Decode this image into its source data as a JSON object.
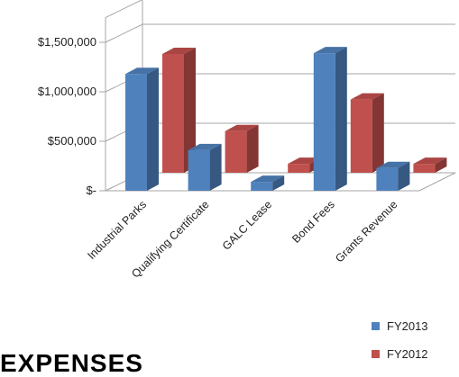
{
  "chart_data": {
    "type": "bar",
    "style": "3d-clustered-column",
    "categories": [
      "Industrial Parks",
      "Qualifying Certificate",
      "GALC Lease",
      "Bond Fees",
      "Grants Revenue"
    ],
    "series": [
      {
        "name": "FY2013",
        "color": "#4f81bd",
        "values": [
          1180000,
          410000,
          90000,
          1390000,
          230000
        ]
      },
      {
        "name": "FY2012",
        "color": "#c0504d",
        "values": [
          1200000,
          420000,
          90000,
          740000,
          90000
        ]
      }
    ],
    "yticks": [
      {
        "value": 0,
        "label": "$-"
      },
      {
        "value": 500000,
        "label": "$500,000"
      },
      {
        "value": 1000000,
        "label": "$1,000,000"
      },
      {
        "value": 1500000,
        "label": "$1,500,000"
      }
    ],
    "ylim": [
      0,
      1750000
    ],
    "grid": true,
    "legend_position": "bottom-right"
  },
  "legend": {
    "items": [
      {
        "label": "FY2013",
        "color": "#4f81bd"
      },
      {
        "label": "FY2012",
        "color": "#c0504d"
      }
    ]
  },
  "footer": {
    "heading": "EXPENSES"
  }
}
